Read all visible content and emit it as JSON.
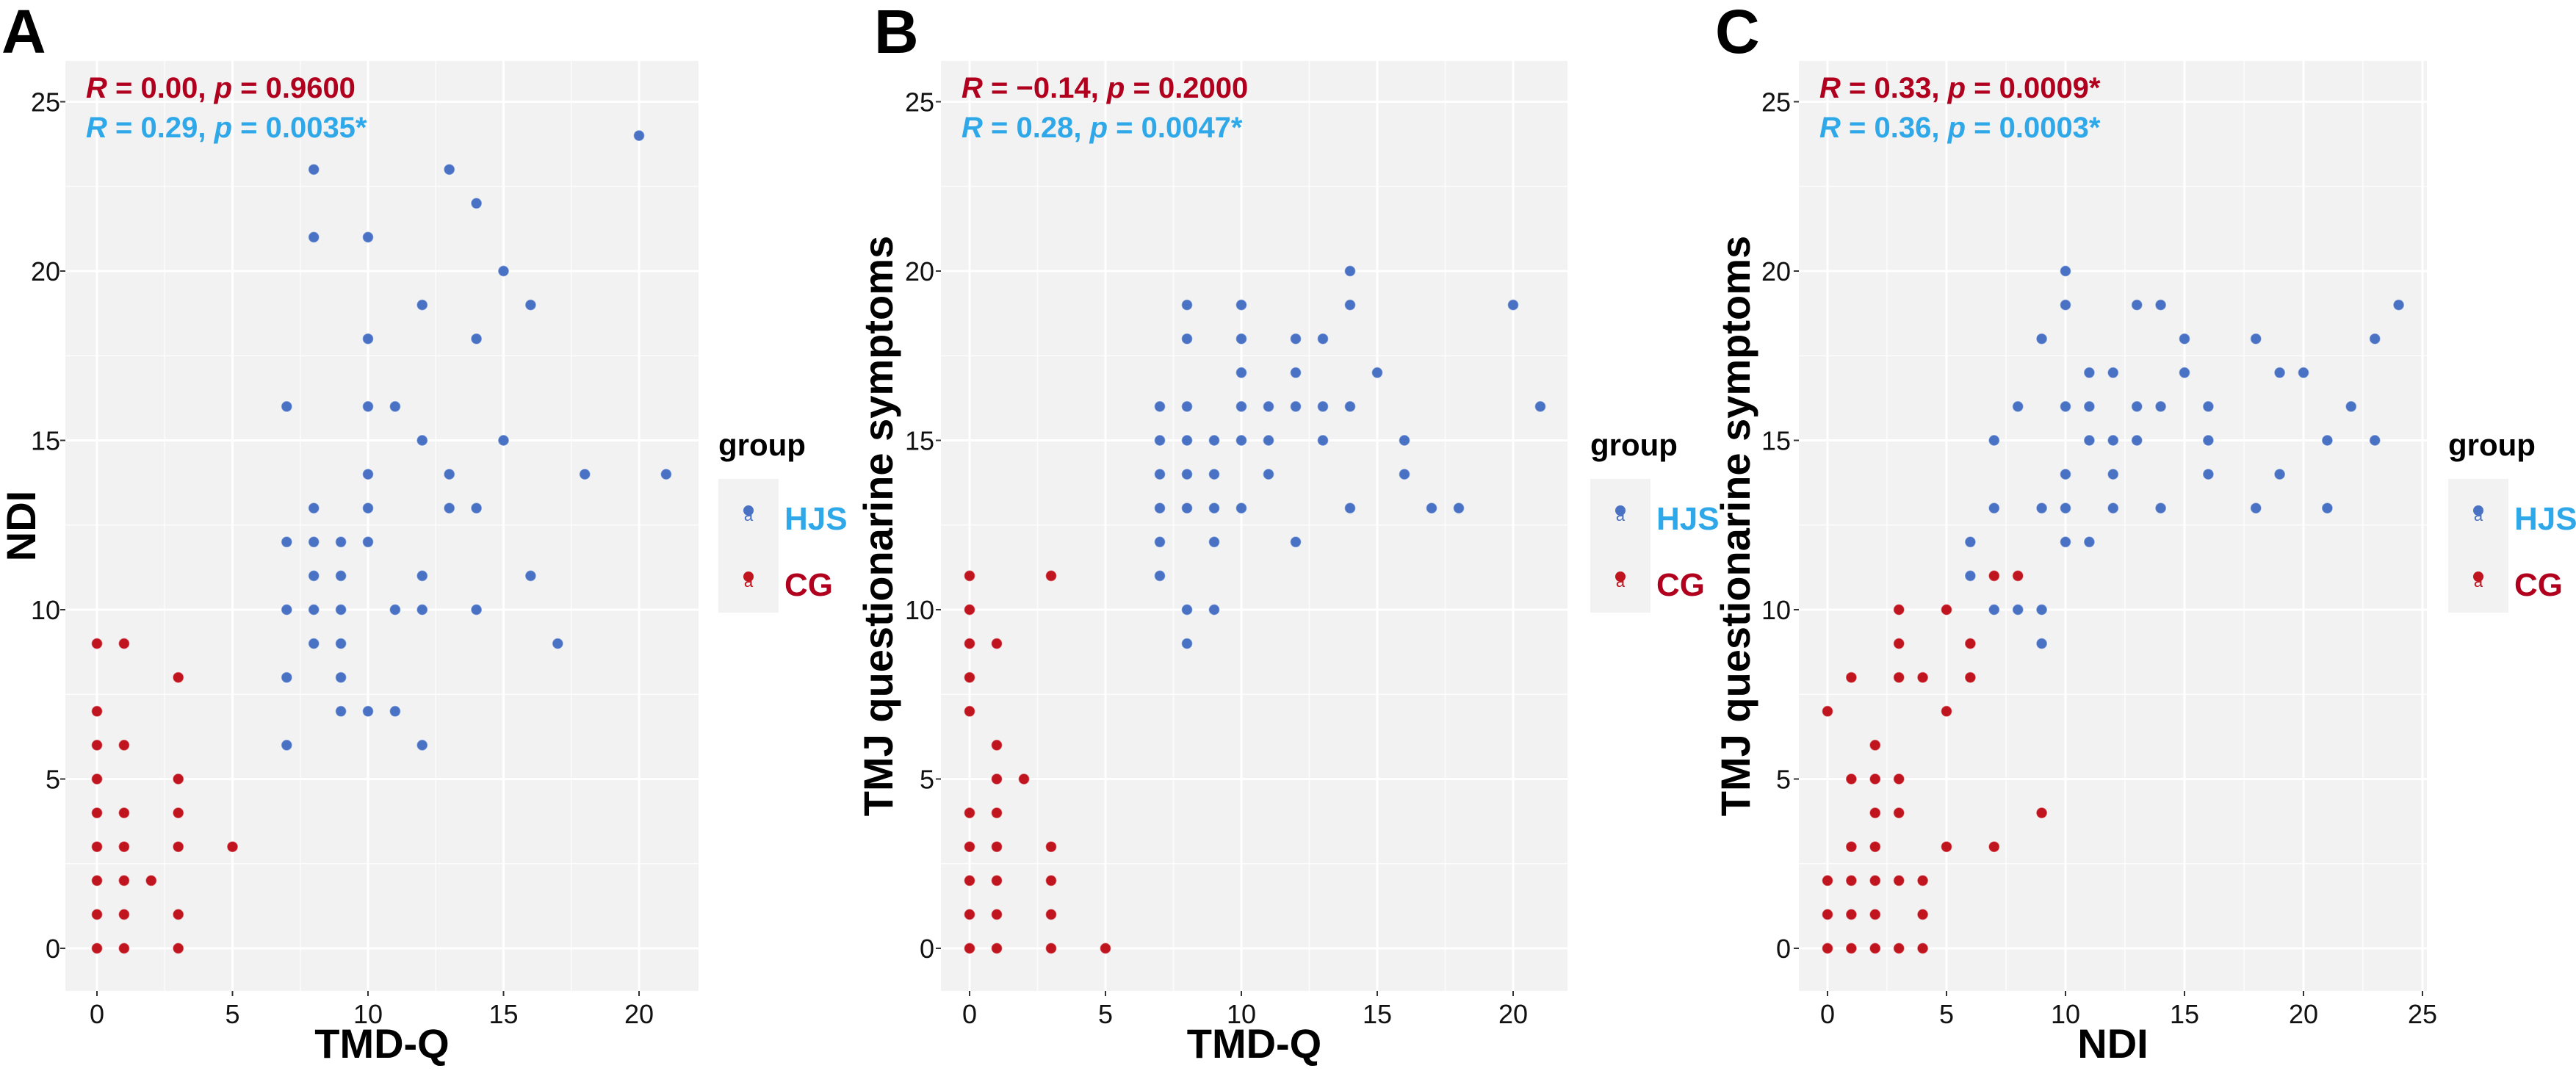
{
  "colors": {
    "HJS_point": "#4a72c4",
    "CG_point": "#c0141e",
    "HJS_text": "#2ea8e8",
    "CG_text": "#b0001e",
    "plot_bg": "#f2f2f2",
    "grid": "#ffffff"
  },
  "legend": {
    "title": "group",
    "items": [
      {
        "label": "HJS",
        "key_glyph": "a"
      },
      {
        "label": "CG",
        "key_glyph": "a"
      }
    ],
    "placement": "right"
  },
  "chart_data": [
    {
      "panel": "A",
      "type": "scatter",
      "xlabel": "TMD-Q",
      "ylabel": "NDI",
      "xlim": [
        0,
        21
      ],
      "ylim": [
        0,
        25
      ],
      "xticks": [
        0,
        5,
        10,
        15,
        20
      ],
      "yticks": [
        0,
        5,
        10,
        15,
        20,
        25
      ],
      "grid": true,
      "annotations": [
        {
          "group": "CG",
          "r_label": "R",
          "r_value": " = 0.00, ",
          "p_label": "p",
          "p_value": " = 0.9600"
        },
        {
          "group": "HJS",
          "r_label": "R",
          "r_value": " = 0.29, ",
          "p_label": "p",
          "p_value": " = 0.0035*"
        }
      ],
      "series": [
        {
          "name": "HJS",
          "points": [
            [
              20,
              24
            ],
            [
              8,
              23
            ],
            [
              13,
              23
            ],
            [
              14,
              22
            ],
            [
              8,
              21
            ],
            [
              10,
              21
            ],
            [
              15,
              20
            ],
            [
              12,
              19
            ],
            [
              16,
              19
            ],
            [
              10,
              18
            ],
            [
              14,
              18
            ],
            [
              7,
              16
            ],
            [
              10,
              16
            ],
            [
              11,
              16
            ],
            [
              12,
              15
            ],
            [
              15,
              15
            ],
            [
              10,
              14
            ],
            [
              13,
              14
            ],
            [
              18,
              14
            ],
            [
              21,
              14
            ],
            [
              8,
              13
            ],
            [
              10,
              13
            ],
            [
              13,
              13
            ],
            [
              14,
              13
            ],
            [
              7,
              12
            ],
            [
              8,
              12
            ],
            [
              9,
              12
            ],
            [
              10,
              12
            ],
            [
              8,
              11
            ],
            [
              9,
              11
            ],
            [
              12,
              11
            ],
            [
              16,
              11
            ],
            [
              7,
              10
            ],
            [
              8,
              10
            ],
            [
              9,
              10
            ],
            [
              11,
              10
            ],
            [
              12,
              10
            ],
            [
              14,
              10
            ],
            [
              8,
              9
            ],
            [
              9,
              9
            ],
            [
              17,
              9
            ],
            [
              7,
              8
            ],
            [
              9,
              8
            ],
            [
              9,
              7
            ],
            [
              10,
              7
            ],
            [
              11,
              7
            ],
            [
              7,
              6
            ],
            [
              12,
              6
            ]
          ]
        },
        {
          "name": "CG",
          "points": [
            [
              0,
              9
            ],
            [
              1,
              9
            ],
            [
              3,
              8
            ],
            [
              0,
              7
            ],
            [
              0,
              6
            ],
            [
              1,
              6
            ],
            [
              0,
              5
            ],
            [
              3,
              5
            ],
            [
              0,
              4
            ],
            [
              1,
              4
            ],
            [
              3,
              4
            ],
            [
              0,
              3
            ],
            [
              1,
              3
            ],
            [
              3,
              3
            ],
            [
              5,
              3
            ],
            [
              0,
              2
            ],
            [
              1,
              2
            ],
            [
              2,
              2
            ],
            [
              0,
              1
            ],
            [
              1,
              1
            ],
            [
              3,
              1
            ],
            [
              0,
              0
            ],
            [
              1,
              0
            ],
            [
              3,
              0
            ]
          ]
        }
      ]
    },
    {
      "panel": "B",
      "type": "scatter",
      "xlabel": "TMD-Q",
      "ylabel": "TMJ questionarine symptoms",
      "xlim": [
        0,
        21
      ],
      "ylim": [
        0,
        25
      ],
      "xticks": [
        0,
        5,
        10,
        15,
        20
      ],
      "yticks": [
        0,
        5,
        10,
        15,
        20,
        25
      ],
      "grid": true,
      "annotations": [
        {
          "group": "CG",
          "r_label": "R",
          "r_value": " = −0.14, ",
          "p_label": "p",
          "p_value": " = 0.2000"
        },
        {
          "group": "HJS",
          "r_label": "R",
          "r_value": " = 0.28, ",
          "p_label": "p",
          "p_value": " = 0.0047*"
        }
      ],
      "series": [
        {
          "name": "HJS",
          "points": [
            [
              14,
              20
            ],
            [
              8,
              19
            ],
            [
              10,
              19
            ],
            [
              14,
              19
            ],
            [
              20,
              19
            ],
            [
              8,
              18
            ],
            [
              10,
              18
            ],
            [
              12,
              18
            ],
            [
              13,
              18
            ],
            [
              10,
              17
            ],
            [
              12,
              17
            ],
            [
              15,
              17
            ],
            [
              7,
              16
            ],
            [
              8,
              16
            ],
            [
              10,
              16
            ],
            [
              11,
              16
            ],
            [
              12,
              16
            ],
            [
              13,
              16
            ],
            [
              14,
              16
            ],
            [
              21,
              16
            ],
            [
              7,
              15
            ],
            [
              8,
              15
            ],
            [
              9,
              15
            ],
            [
              10,
              15
            ],
            [
              11,
              15
            ],
            [
              13,
              15
            ],
            [
              16,
              15
            ],
            [
              7,
              14
            ],
            [
              8,
              14
            ],
            [
              9,
              14
            ],
            [
              11,
              14
            ],
            [
              16,
              14
            ],
            [
              7,
              13
            ],
            [
              8,
              13
            ],
            [
              9,
              13
            ],
            [
              10,
              13
            ],
            [
              14,
              13
            ],
            [
              17,
              13
            ],
            [
              18,
              13
            ],
            [
              7,
              12
            ],
            [
              9,
              12
            ],
            [
              12,
              12
            ],
            [
              7,
              11
            ],
            [
              8,
              10
            ],
            [
              9,
              10
            ],
            [
              8,
              9
            ]
          ]
        },
        {
          "name": "CG",
          "points": [
            [
              0,
              11
            ],
            [
              3,
              11
            ],
            [
              0,
              10
            ],
            [
              0,
              9
            ],
            [
              1,
              9
            ],
            [
              0,
              8
            ],
            [
              0,
              7
            ],
            [
              1,
              6
            ],
            [
              1,
              5
            ],
            [
              2,
              5
            ],
            [
              0,
              4
            ],
            [
              1,
              4
            ],
            [
              0,
              3
            ],
            [
              1,
              3
            ],
            [
              3,
              3
            ],
            [
              0,
              2
            ],
            [
              1,
              2
            ],
            [
              3,
              2
            ],
            [
              0,
              1
            ],
            [
              1,
              1
            ],
            [
              3,
              1
            ],
            [
              0,
              0
            ],
            [
              1,
              0
            ],
            [
              3,
              0
            ],
            [
              5,
              0
            ]
          ]
        }
      ]
    },
    {
      "panel": "C",
      "type": "scatter",
      "xlabel": "NDI",
      "ylabel": "TMJ questionarine symptoms",
      "xlim": [
        0,
        24
      ],
      "ylim": [
        0,
        25
      ],
      "xticks": [
        0,
        5,
        10,
        15,
        20,
        25
      ],
      "yticks": [
        0,
        5,
        10,
        15,
        20,
        25
      ],
      "grid": true,
      "annotations": [
        {
          "group": "CG",
          "r_label": "R",
          "r_value": " = 0.33, ",
          "p_label": "p",
          "p_value": " = 0.0009*"
        },
        {
          "group": "HJS",
          "r_label": "R",
          "r_value": " = 0.36, ",
          "p_label": "p",
          "p_value": " = 0.0003*"
        }
      ],
      "series": [
        {
          "name": "HJS",
          "points": [
            [
              10,
              20
            ],
            [
              10,
              19
            ],
            [
              13,
              19
            ],
            [
              14,
              19
            ],
            [
              24,
              19
            ],
            [
              9,
              18
            ],
            [
              15,
              18
            ],
            [
              18,
              18
            ],
            [
              23,
              18
            ],
            [
              11,
              17
            ],
            [
              12,
              17
            ],
            [
              15,
              17
            ],
            [
              19,
              17
            ],
            [
              20,
              17
            ],
            [
              8,
              16
            ],
            [
              10,
              16
            ],
            [
              11,
              16
            ],
            [
              13,
              16
            ],
            [
              14,
              16
            ],
            [
              16,
              16
            ],
            [
              22,
              16
            ],
            [
              7,
              15
            ],
            [
              11,
              15
            ],
            [
              12,
              15
            ],
            [
              13,
              15
            ],
            [
              16,
              15
            ],
            [
              21,
              15
            ],
            [
              23,
              15
            ],
            [
              10,
              14
            ],
            [
              12,
              14
            ],
            [
              16,
              14
            ],
            [
              19,
              14
            ],
            [
              7,
              13
            ],
            [
              9,
              13
            ],
            [
              10,
              13
            ],
            [
              12,
              13
            ],
            [
              14,
              13
            ],
            [
              18,
              13
            ],
            [
              21,
              13
            ],
            [
              6,
              12
            ],
            [
              10,
              12
            ],
            [
              11,
              12
            ],
            [
              6,
              11
            ],
            [
              7,
              10
            ],
            [
              8,
              10
            ],
            [
              9,
              10
            ],
            [
              9,
              9
            ]
          ]
        },
        {
          "name": "CG",
          "points": [
            [
              7,
              11
            ],
            [
              8,
              11
            ],
            [
              3,
              10
            ],
            [
              5,
              10
            ],
            [
              3,
              9
            ],
            [
              6,
              9
            ],
            [
              1,
              8
            ],
            [
              3,
              8
            ],
            [
              4,
              8
            ],
            [
              6,
              8
            ],
            [
              0,
              7
            ],
            [
              5,
              7
            ],
            [
              2,
              6
            ],
            [
              1,
              5
            ],
            [
              2,
              5
            ],
            [
              3,
              5
            ],
            [
              2,
              4
            ],
            [
              3,
              4
            ],
            [
              9,
              4
            ],
            [
              1,
              3
            ],
            [
              2,
              3
            ],
            [
              5,
              3
            ],
            [
              7,
              3
            ],
            [
              0,
              2
            ],
            [
              1,
              2
            ],
            [
              2,
              2
            ],
            [
              3,
              2
            ],
            [
              4,
              2
            ],
            [
              0,
              1
            ],
            [
              1,
              1
            ],
            [
              2,
              1
            ],
            [
              4,
              1
            ],
            [
              0,
              0
            ],
            [
              1,
              0
            ],
            [
              2,
              0
            ],
            [
              3,
              0
            ],
            [
              4,
              0
            ]
          ]
        }
      ]
    }
  ]
}
